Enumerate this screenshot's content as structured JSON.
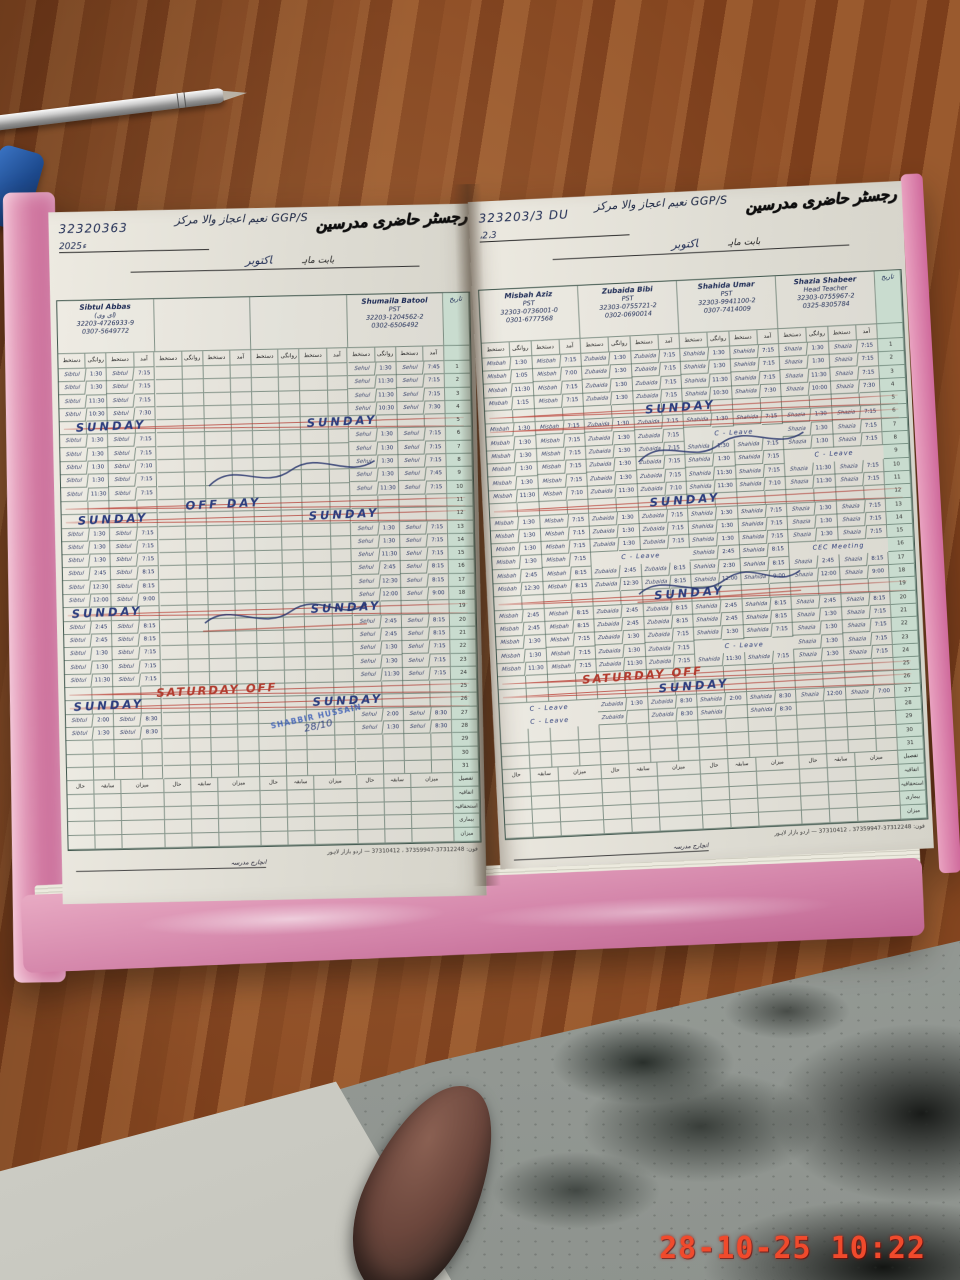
{
  "scene": {
    "timestamp": "28-10-25 10:22",
    "objects": [
      "pen-icon",
      "blue-cap-icon",
      "shoe-icon",
      "wooden-table",
      "concrete-floor",
      "white-cloth"
    ]
  },
  "register": {
    "printed_title_urdu": "رجسٹر حاضری مدرسین",
    "month_label_urdu": "بابت ماہ",
    "column_headers_urdu": [
      "دستخط",
      "روانگی",
      "دستخط",
      "آمد"
    ],
    "serial_header_urdu": "تاریخ",
    "summary_group_headers_urdu": [
      "حال",
      "سابقہ",
      "میزان"
    ],
    "summary_row_labels_urdu": [
      "اتفاقیہ",
      "استحقاقیہ",
      "بیماری",
      "میزان"
    ],
    "summary_corner_urdu": "تفصیل",
    "footer_print": "فون: 37312248-37359947 ، 37310412 — اردو بازار لاہور",
    "signature_line_label_urdu": "انچارج مدرسہ",
    "stamp": {
      "line1": "SHABBIR HUSSAIN",
      "date": "28/10"
    },
    "ink_color": "#243267",
    "red_color": "#b23b2e",
    "pages": [
      {
        "side": "left",
        "code": "32320363",
        "code2": "2025ء",
        "school_line": "GGP/S نعیم اعجاز والا مرکز",
        "month_value": "اکتوبر",
        "has_stamp": true,
        "teachers": [
          {
            "name": "Sibtul Abbas",
            "title": "(ای وی)",
            "cnic": "32203-4726933-9",
            "phone": "0307-5649772",
            "sign": "Sibtul",
            "entries": {
              "1": [
                "1:30",
                "7:15"
              ],
              "2": [
                "1:30",
                "7:15"
              ],
              "3": [
                "11:30",
                "7:15"
              ],
              "4": [
                "10:30",
                "7:30"
              ],
              "6": [
                "1:30",
                "7:15"
              ],
              "7": [
                "1:30",
                "7:15"
              ],
              "8": [
                "1:30",
                "7:10"
              ],
              "9": [
                "1:30",
                "7:15"
              ],
              "10": [
                "11:30",
                "7:15"
              ],
              "13": [
                "1:30",
                "7:15"
              ],
              "14": [
                "1:30",
                "7:15"
              ],
              "15": [
                "1:30",
                "7:15"
              ],
              "16": [
                "2:45",
                "8:15"
              ],
              "17": [
                "12:30",
                "8:15"
              ],
              "18": [
                "12:00",
                "9:00"
              ],
              "20": [
                "2:45",
                "8:15"
              ],
              "21": [
                "2:45",
                "8:15"
              ],
              "22": [
                "1:30",
                "7:15"
              ],
              "23": [
                "1:30",
                "7:15"
              ],
              "24": [
                "11:30",
                "7:15"
              ],
              "27": [
                "2:00",
                "8:30"
              ],
              "28": [
                "1:30",
                "8:30"
              ]
            }
          },
          {
            "name": "",
            "title": "",
            "cnic": "",
            "phone": "",
            "sign": "",
            "entries": {}
          },
          {
            "name": "",
            "title": "",
            "cnic": "",
            "phone": "",
            "sign": "",
            "entries": {}
          },
          {
            "name": "Shumaila Batool",
            "title": "PST",
            "cnic": "32203-1204562-2",
            "phone": "0302-6506492",
            "sign": "Sehul",
            "entries": {
              "1": [
                "1:30",
                "7:45"
              ],
              "2": [
                "11:30",
                "7:15"
              ],
              "3": [
                "11:30",
                "7:15"
              ],
              "4": [
                "10:30",
                "7:30"
              ],
              "6": [
                "1:30",
                "7:15"
              ],
              "7": [
                "1:30",
                "7:15"
              ],
              "8": [
                "1:30",
                "7:15"
              ],
              "9": [
                "1:30",
                "7:45"
              ],
              "10": [
                "11:30",
                "7:15"
              ],
              "13": [
                "1:30",
                "7:15"
              ],
              "14": [
                "1:30",
                "7:15"
              ],
              "15": [
                "11:30",
                "7:15"
              ],
              "16": [
                "2:45",
                "8:15"
              ],
              "17": [
                "12:30",
                "8:15"
              ],
              "18": [
                "12:00",
                "9:00"
              ],
              "20": [
                "2:45",
                "8:15"
              ],
              "21": [
                "2:45",
                "8:15"
              ],
              "22": [
                "1:30",
                "7:15"
              ],
              "23": [
                "1:30",
                "7:15"
              ],
              "24": [
                "11:30",
                "7:15"
              ],
              "27": [
                "2:00",
                "8:30"
              ],
              "28": [
                "1:30",
                "8:30"
              ]
            }
          }
        ],
        "day_labels": [
          {
            "row": 5,
            "text": "SUNDAY",
            "red": false,
            "positions": [
              4,
              60
            ]
          },
          {
            "row": 11,
            "text": "OFF DAY",
            "red": false,
            "positions": [
              30
            ]
          },
          {
            "row": 12,
            "text": "SUNDAY",
            "red": false,
            "positions": [
              4,
              60
            ]
          },
          {
            "row": 19,
            "text": "SUNDAY",
            "red": false,
            "positions": [
              2,
              60
            ]
          },
          {
            "row": 25,
            "text": "SATURDAY OFF",
            "red": true,
            "positions": [
              22
            ]
          },
          {
            "row": 26,
            "text": "SUNDAY",
            "red": false,
            "positions": [
              2,
              60
            ]
          }
        ],
        "struck_rows": [
          5,
          11,
          12,
          19,
          25,
          26
        ]
      },
      {
        "side": "right",
        "code": "323203/3 DU",
        "code2": "،2،3",
        "school_line": "GGP/S نعیم اعجاز والا مرکز",
        "month_value": "اکتوبر",
        "has_stamp": false,
        "teachers": [
          {
            "name": "Misbah Aziz",
            "title": "PST",
            "cnic": "32303-0736001-0",
            "phone": "0301-6777568",
            "sign": "Misbah",
            "entries": {
              "1": [
                "1:30",
                "7:15"
              ],
              "2": [
                "1:05",
                "7:00"
              ],
              "3": [
                "11:30",
                "7:15"
              ],
              "4": [
                "1:15",
                "7:15"
              ],
              "6": [
                "1:30",
                "7:15"
              ],
              "7": [
                "1:30",
                "7:15"
              ],
              "8": [
                "1:30",
                "7:15"
              ],
              "9": [
                "1:30",
                "7:15"
              ],
              "10": [
                "1:30",
                "7:15"
              ],
              "11": [
                "11:30",
                "7:10"
              ],
              "13": [
                "1:30",
                "7:15"
              ],
              "14": [
                "1:30",
                "7:15"
              ],
              "15": [
                "1:30",
                "7:15"
              ],
              "16": [
                "1:30",
                "7:15"
              ],
              "17": [
                "2:45",
                "8:15"
              ],
              "18": [
                "12:30",
                "8:15"
              ],
              "20": [
                "2:45",
                "8:15"
              ],
              "21": [
                "2:45",
                "8:15"
              ],
              "22": [
                "1:30",
                "7:15"
              ],
              "23": [
                "1:30",
                "7:15"
              ],
              "24": [
                "11:30",
                "7:15"
              ],
              "27": "C - Leave",
              "28": "C - Leave"
            }
          },
          {
            "name": "Zubaida Bibi",
            "title": "PST",
            "cnic": "32303-0755721-2",
            "phone": "0302-0690014",
            "sign": "Zubaida",
            "entries": {
              "1": [
                "1:30",
                "7:15"
              ],
              "2": [
                "1:30",
                "7:15"
              ],
              "3": [
                "1:30",
                "7:15"
              ],
              "4": [
                "1:30",
                "7:15"
              ],
              "6": [
                "1:30",
                "7:15"
              ],
              "7": [
                "1:30",
                "7:15"
              ],
              "8": [
                "1:30",
                "7:15"
              ],
              "9": [
                "1:30",
                "7:15"
              ],
              "10": [
                "1:30",
                "7:15"
              ],
              "11": [
                "11:30",
                "7:10"
              ],
              "13": [
                "1:30",
                "7:15"
              ],
              "14": [
                "1:30",
                "7:15"
              ],
              "15": [
                "1:30",
                "7:15"
              ],
              "16": "C - Leave",
              "17": [
                "2:45",
                "8:15"
              ],
              "18": [
                "12:30",
                "8:15"
              ],
              "20": [
                "2:45",
                "8:15"
              ],
              "21": [
                "2:45",
                "8:15"
              ],
              "22": [
                "1:30",
                "7:15"
              ],
              "23": [
                "1:30",
                "7:15"
              ],
              "24": [
                "11:30",
                "7:15"
              ],
              "27": [
                "1:30",
                "8:30"
              ],
              "28": [
                "",
                "8:30"
              ]
            }
          },
          {
            "name": "Shahida Umar",
            "title": "PST",
            "cnic": "32303-9941100-2",
            "phone": "0307-7414009",
            "sign": "Shahida",
            "entries": {
              "1": [
                "1:30",
                "7:15"
              ],
              "2": [
                "1:30",
                "7:15"
              ],
              "3": [
                "11:30",
                "7:15"
              ],
              "4": [
                "10:30",
                "7:30"
              ],
              "6": [
                "1:30",
                "7:15"
              ],
              "7": "C - Leave",
              "8": [
                "1:30",
                "7:15"
              ],
              "9": [
                "1:30",
                "7:15"
              ],
              "10": [
                "11:30",
                "7:15"
              ],
              "11": [
                "11:30",
                "7:10"
              ],
              "13": [
                "1:30",
                "7:15"
              ],
              "14": [
                "1:30",
                "7:15"
              ],
              "15": [
                "1:30",
                "7:15"
              ],
              "16": [
                "2:45",
                "8:15"
              ],
              "17": [
                "2:30",
                "8:15"
              ],
              "18": [
                "12:00",
                "9:00"
              ],
              "20": [
                "2:45",
                "8:15"
              ],
              "21": [
                "2:45",
                "8:15"
              ],
              "22": [
                "1:30",
                "7:15"
              ],
              "23": "C - Leave",
              "24": [
                "11:30",
                "7:15"
              ],
              "27": [
                "2:00",
                "8:30"
              ],
              "28": [
                "",
                "8:30"
              ]
            }
          },
          {
            "name": "Shazia Shabeer",
            "title": "Head Teacher",
            "cnic": "32303-0755967-2",
            "phone": "0325-8305784",
            "sign": "Shazia",
            "entries": {
              "1": [
                "1:30",
                "7:15"
              ],
              "2": [
                "1:30",
                "7:15"
              ],
              "3": [
                "11:30",
                "7:15"
              ],
              "4": [
                "10:00",
                "7:30"
              ],
              "6": [
                "1:30",
                "7:15"
              ],
              "7": [
                "1:30",
                "7:15"
              ],
              "8": [
                "1:30",
                "7:15"
              ],
              "9": "C - Leave",
              "10": [
                "11:30",
                "7:15"
              ],
              "11": [
                "11:30",
                "7:15"
              ],
              "13": [
                "1:30",
                "7:15"
              ],
              "14": [
                "1:30",
                "7:15"
              ],
              "15": [
                "1:30",
                "7:15"
              ],
              "16": "CEC Meeting",
              "17": [
                "2:45",
                "8:15"
              ],
              "18": [
                "12:00",
                "9:00"
              ],
              "20": [
                "2:45",
                "8:15"
              ],
              "21": [
                "1:30",
                "7:15"
              ],
              "22": [
                "1:30",
                "7:15"
              ],
              "23": [
                "1:30",
                "7:15"
              ],
              "24": [
                "1:30",
                "7:15"
              ],
              "27": [
                "12:00",
                "7:00"
              ]
            }
          }
        ],
        "day_labels": [
          {
            "row": 5,
            "text": "SUNDAY",
            "red": false,
            "positions": [
              38
            ]
          },
          {
            "row": 12,
            "text": "SUNDAY",
            "red": false,
            "positions": [
              38
            ]
          },
          {
            "row": 19,
            "text": "SUNDAY",
            "red": false,
            "positions": [
              38
            ]
          },
          {
            "row": 25,
            "text": "SATURDAY OFF",
            "red": true,
            "positions": [
              20
            ]
          },
          {
            "row": 26,
            "text": "SUNDAY",
            "red": false,
            "positions": [
              38
            ]
          }
        ],
        "struck_rows": [
          5,
          6,
          12,
          19,
          25,
          26
        ]
      }
    ]
  }
}
